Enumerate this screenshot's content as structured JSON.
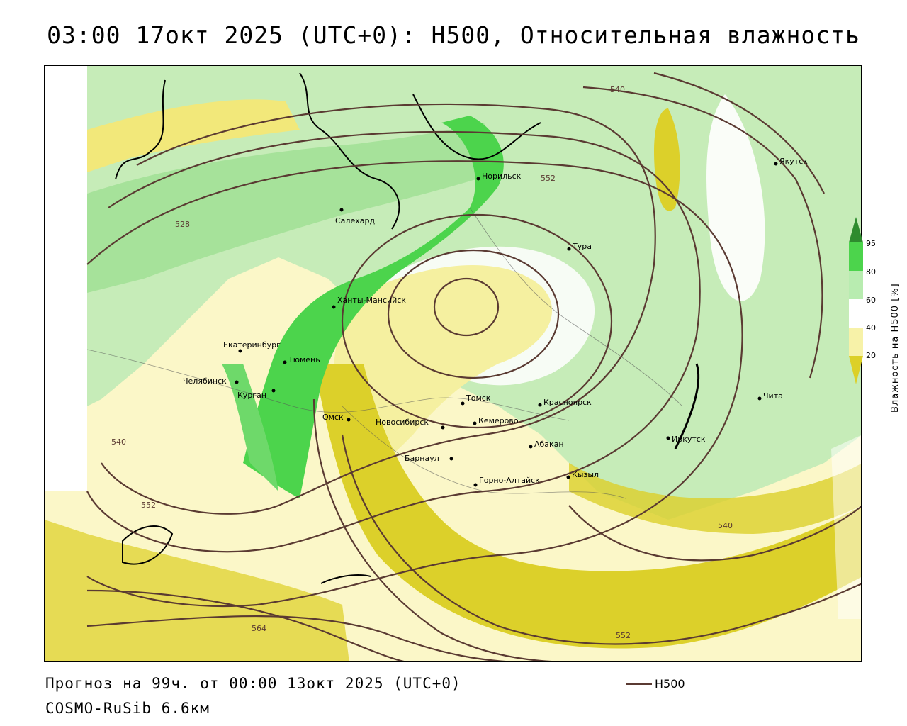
{
  "title": "03:00 17окт 2025 (UTC+0): H500, Относительная влажность",
  "footer": {
    "forecast": "Прогноз на 99ч. от 00:00 13окт 2025 (UTC+0)",
    "model": "COSMO-RuSib 6.6км"
  },
  "legend": {
    "series_label": "H500",
    "line_color": "#5a3a32"
  },
  "colorbar": {
    "title": "Влажность на H500 [%]",
    "ticks": [
      "95",
      "80",
      "60",
      "40",
      "20"
    ],
    "colors": [
      "#2e8b2e",
      "#4cd44c",
      "#b8ecb0",
      "#ffffff",
      "#f7f2a8",
      "#dcd028"
    ]
  },
  "cities": [
    {
      "name": "Якутск"
    },
    {
      "name": "Норильск"
    },
    {
      "name": "Салехард"
    },
    {
      "name": "Тура"
    },
    {
      "name": "Ханты-Мансийск"
    },
    {
      "name": "Екатеринбург"
    },
    {
      "name": "Тюмень"
    },
    {
      "name": "Челябинск"
    },
    {
      "name": "Курган"
    },
    {
      "name": "Омск"
    },
    {
      "name": "Томск"
    },
    {
      "name": "Новосибирск"
    },
    {
      "name": "Кемерово"
    },
    {
      "name": "Красноярск"
    },
    {
      "name": "Абакан"
    },
    {
      "name": "Барнаул"
    },
    {
      "name": "Горно-Алтайск"
    },
    {
      "name": "Кызыл"
    },
    {
      "name": "Иркутск"
    },
    {
      "name": "Чита"
    }
  ],
  "contour_labels": [
    "540",
    "552",
    "528",
    "540",
    "552",
    "564",
    "552",
    "540"
  ]
}
